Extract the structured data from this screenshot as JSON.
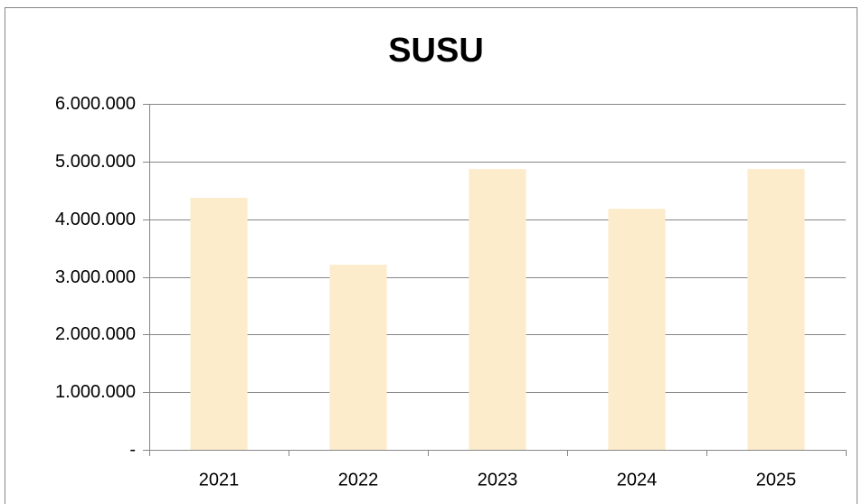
{
  "chart_data": {
    "type": "bar",
    "title": "SUSU",
    "categories": [
      "2021",
      "2022",
      "2023",
      "2024",
      "2025"
    ],
    "values": [
      4370000,
      3210000,
      4870000,
      4180000,
      4870000
    ],
    "color": "#fdeccb",
    "ylim": [
      0,
      6000000
    ],
    "yticks": [
      {
        "value": 0,
        "label": "-"
      },
      {
        "value": 1000000,
        "label": "1.000.000"
      },
      {
        "value": 2000000,
        "label": "2.000.000"
      },
      {
        "value": 3000000,
        "label": "3.000.000"
      },
      {
        "value": 4000000,
        "label": "4.000.000"
      },
      {
        "value": 5000000,
        "label": "5.000.000"
      },
      {
        "value": 6000000,
        "label": "6.000.000"
      }
    ],
    "grid": true
  }
}
